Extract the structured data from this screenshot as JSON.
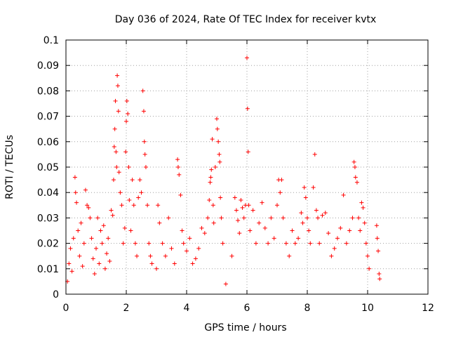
{
  "chart_data": {
    "type": "scatter",
    "title": "Day 036 of 2024, Rate Of TEC Index for receiver kvtx",
    "xlabel": "GPS time / hours",
    "ylabel": "ROTI / TECUs",
    "xlim": [
      0,
      12
    ],
    "ylim": [
      0,
      0.1
    ],
    "xticks": [
      0,
      2,
      4,
      6,
      8,
      10,
      12
    ],
    "xtick_labels": [
      "0",
      "2",
      "4",
      "6",
      "8",
      "10",
      "12"
    ],
    "yticks": [
      0,
      0.01,
      0.02,
      0.03,
      0.04,
      0.05,
      0.06,
      0.07,
      0.08,
      0.09,
      0.1
    ],
    "ytick_labels": [
      "0",
      "0.01",
      "0.02",
      "0.03",
      "0.04",
      "0.05",
      "0.06",
      "0.07",
      "0.08",
      "0.09",
      "0.1"
    ],
    "grid": true,
    "marker": "+",
    "color": "#ff0000",
    "series": [
      {
        "name": "ROTI",
        "points": [
          [
            0.05,
            0.005
          ],
          [
            0.1,
            0.012
          ],
          [
            0.15,
            0.018
          ],
          [
            0.2,
            0.009
          ],
          [
            0.25,
            0.022
          ],
          [
            0.3,
            0.046
          ],
          [
            0.32,
            0.04
          ],
          [
            0.35,
            0.036
          ],
          [
            0.4,
            0.025
          ],
          [
            0.45,
            0.015
          ],
          [
            0.5,
            0.028
          ],
          [
            0.55,
            0.011
          ],
          [
            0.6,
            0.02
          ],
          [
            0.65,
            0.041
          ],
          [
            0.7,
            0.035
          ],
          [
            0.75,
            0.034
          ],
          [
            0.8,
            0.03
          ],
          [
            0.85,
            0.022
          ],
          [
            0.9,
            0.014
          ],
          [
            0.95,
            0.008
          ],
          [
            1.0,
            0.018
          ],
          [
            1.05,
            0.03
          ],
          [
            1.1,
            0.012
          ],
          [
            1.15,
            0.025
          ],
          [
            1.2,
            0.02
          ],
          [
            1.25,
            0.027
          ],
          [
            1.3,
            0.01
          ],
          [
            1.35,
            0.016
          ],
          [
            1.4,
            0.022
          ],
          [
            1.45,
            0.013
          ],
          [
            1.5,
            0.033
          ],
          [
            1.55,
            0.031
          ],
          [
            1.58,
            0.045
          ],
          [
            1.6,
            0.058
          ],
          [
            1.62,
            0.065
          ],
          [
            1.64,
            0.076
          ],
          [
            1.66,
            0.056
          ],
          [
            1.68,
            0.05
          ],
          [
            1.7,
            0.086
          ],
          [
            1.72,
            0.082
          ],
          [
            1.74,
            0.072
          ],
          [
            1.76,
            0.048
          ],
          [
            1.8,
            0.04
          ],
          [
            1.85,
            0.035
          ],
          [
            1.9,
            0.02
          ],
          [
            1.95,
            0.026
          ],
          [
            1.98,
            0.056
          ],
          [
            2.0,
            0.068
          ],
          [
            2.02,
            0.076
          ],
          [
            2.05,
            0.071
          ],
          [
            2.08,
            0.05
          ],
          [
            2.1,
            0.037
          ],
          [
            2.15,
            0.025
          ],
          [
            2.2,
            0.045
          ],
          [
            2.25,
            0.035
          ],
          [
            2.3,
            0.02
          ],
          [
            2.35,
            0.015
          ],
          [
            2.4,
            0.038
          ],
          [
            2.45,
            0.045
          ],
          [
            2.5,
            0.04
          ],
          [
            2.55,
            0.08
          ],
          [
            2.58,
            0.072
          ],
          [
            2.6,
            0.06
          ],
          [
            2.62,
            0.055
          ],
          [
            2.65,
            0.05
          ],
          [
            2.7,
            0.035
          ],
          [
            2.75,
            0.02
          ],
          [
            2.8,
            0.015
          ],
          [
            2.85,
            0.012
          ],
          [
            3.0,
            0.01
          ],
          [
            3.05,
            0.035
          ],
          [
            3.1,
            0.028
          ],
          [
            3.2,
            0.02
          ],
          [
            3.3,
            0.015
          ],
          [
            3.4,
            0.03
          ],
          [
            3.5,
            0.018
          ],
          [
            3.6,
            0.012
          ],
          [
            3.7,
            0.053
          ],
          [
            3.72,
            0.05
          ],
          [
            3.75,
            0.047
          ],
          [
            3.8,
            0.039
          ],
          [
            3.85,
            0.025
          ],
          [
            3.9,
            0.02
          ],
          [
            4.0,
            0.017
          ],
          [
            4.1,
            0.022
          ],
          [
            4.2,
            0.012
          ],
          [
            4.3,
            0.014
          ],
          [
            4.4,
            0.018
          ],
          [
            4.5,
            0.026
          ],
          [
            4.6,
            0.024
          ],
          [
            4.7,
            0.03
          ],
          [
            4.75,
            0.037
          ],
          [
            4.78,
            0.044
          ],
          [
            4.8,
            0.046
          ],
          [
            4.82,
            0.049
          ],
          [
            4.85,
            0.061
          ],
          [
            4.88,
            0.035
          ],
          [
            4.9,
            0.028
          ],
          [
            4.95,
            0.05
          ],
          [
            5.0,
            0.069
          ],
          [
            5.02,
            0.065
          ],
          [
            5.05,
            0.06
          ],
          [
            5.08,
            0.055
          ],
          [
            5.1,
            0.052
          ],
          [
            5.12,
            0.038
          ],
          [
            5.15,
            0.03
          ],
          [
            5.2,
            0.02
          ],
          [
            5.3,
            0.004
          ],
          [
            5.5,
            0.015
          ],
          [
            5.6,
            0.038
          ],
          [
            5.65,
            0.033
          ],
          [
            5.7,
            0.029
          ],
          [
            5.75,
            0.024
          ],
          [
            5.8,
            0.037
          ],
          [
            5.85,
            0.034
          ],
          [
            5.9,
            0.03
          ],
          [
            5.95,
            0.035
          ],
          [
            6.0,
            0.093
          ],
          [
            6.02,
            0.073
          ],
          [
            6.04,
            0.056
          ],
          [
            6.06,
            0.035
          ],
          [
            6.1,
            0.025
          ],
          [
            6.2,
            0.033
          ],
          [
            6.3,
            0.02
          ],
          [
            6.4,
            0.028
          ],
          [
            6.5,
            0.036
          ],
          [
            6.6,
            0.026
          ],
          [
            6.7,
            0.02
          ],
          [
            6.8,
            0.03
          ],
          [
            6.9,
            0.022
          ],
          [
            7.0,
            0.035
          ],
          [
            7.05,
            0.045
          ],
          [
            7.1,
            0.04
          ],
          [
            7.15,
            0.045
          ],
          [
            7.2,
            0.03
          ],
          [
            7.3,
            0.02
          ],
          [
            7.4,
            0.015
          ],
          [
            7.5,
            0.025
          ],
          [
            7.6,
            0.02
          ],
          [
            7.7,
            0.022
          ],
          [
            7.8,
            0.032
          ],
          [
            7.85,
            0.028
          ],
          [
            7.9,
            0.042
          ],
          [
            7.95,
            0.038
          ],
          [
            8.0,
            0.03
          ],
          [
            8.05,
            0.025
          ],
          [
            8.1,
            0.02
          ],
          [
            8.2,
            0.042
          ],
          [
            8.25,
            0.055
          ],
          [
            8.3,
            0.033
          ],
          [
            8.35,
            0.03
          ],
          [
            8.4,
            0.02
          ],
          [
            8.5,
            0.031
          ],
          [
            8.6,
            0.032
          ],
          [
            8.7,
            0.024
          ],
          [
            8.8,
            0.015
          ],
          [
            8.9,
            0.018
          ],
          [
            9.0,
            0.022
          ],
          [
            9.1,
            0.026
          ],
          [
            9.2,
            0.039
          ],
          [
            9.3,
            0.02
          ],
          [
            9.4,
            0.025
          ],
          [
            9.5,
            0.03
          ],
          [
            9.55,
            0.052
          ],
          [
            9.58,
            0.05
          ],
          [
            9.6,
            0.046
          ],
          [
            9.65,
            0.044
          ],
          [
            9.7,
            0.03
          ],
          [
            9.75,
            0.025
          ],
          [
            9.8,
            0.036
          ],
          [
            9.85,
            0.034
          ],
          [
            9.9,
            0.028
          ],
          [
            9.95,
            0.02
          ],
          [
            10.0,
            0.015
          ],
          [
            10.05,
            0.01
          ],
          [
            10.3,
            0.027
          ],
          [
            10.32,
            0.022
          ],
          [
            10.35,
            0.017
          ],
          [
            10.38,
            0.008
          ],
          [
            10.4,
            0.006
          ]
        ]
      }
    ]
  }
}
